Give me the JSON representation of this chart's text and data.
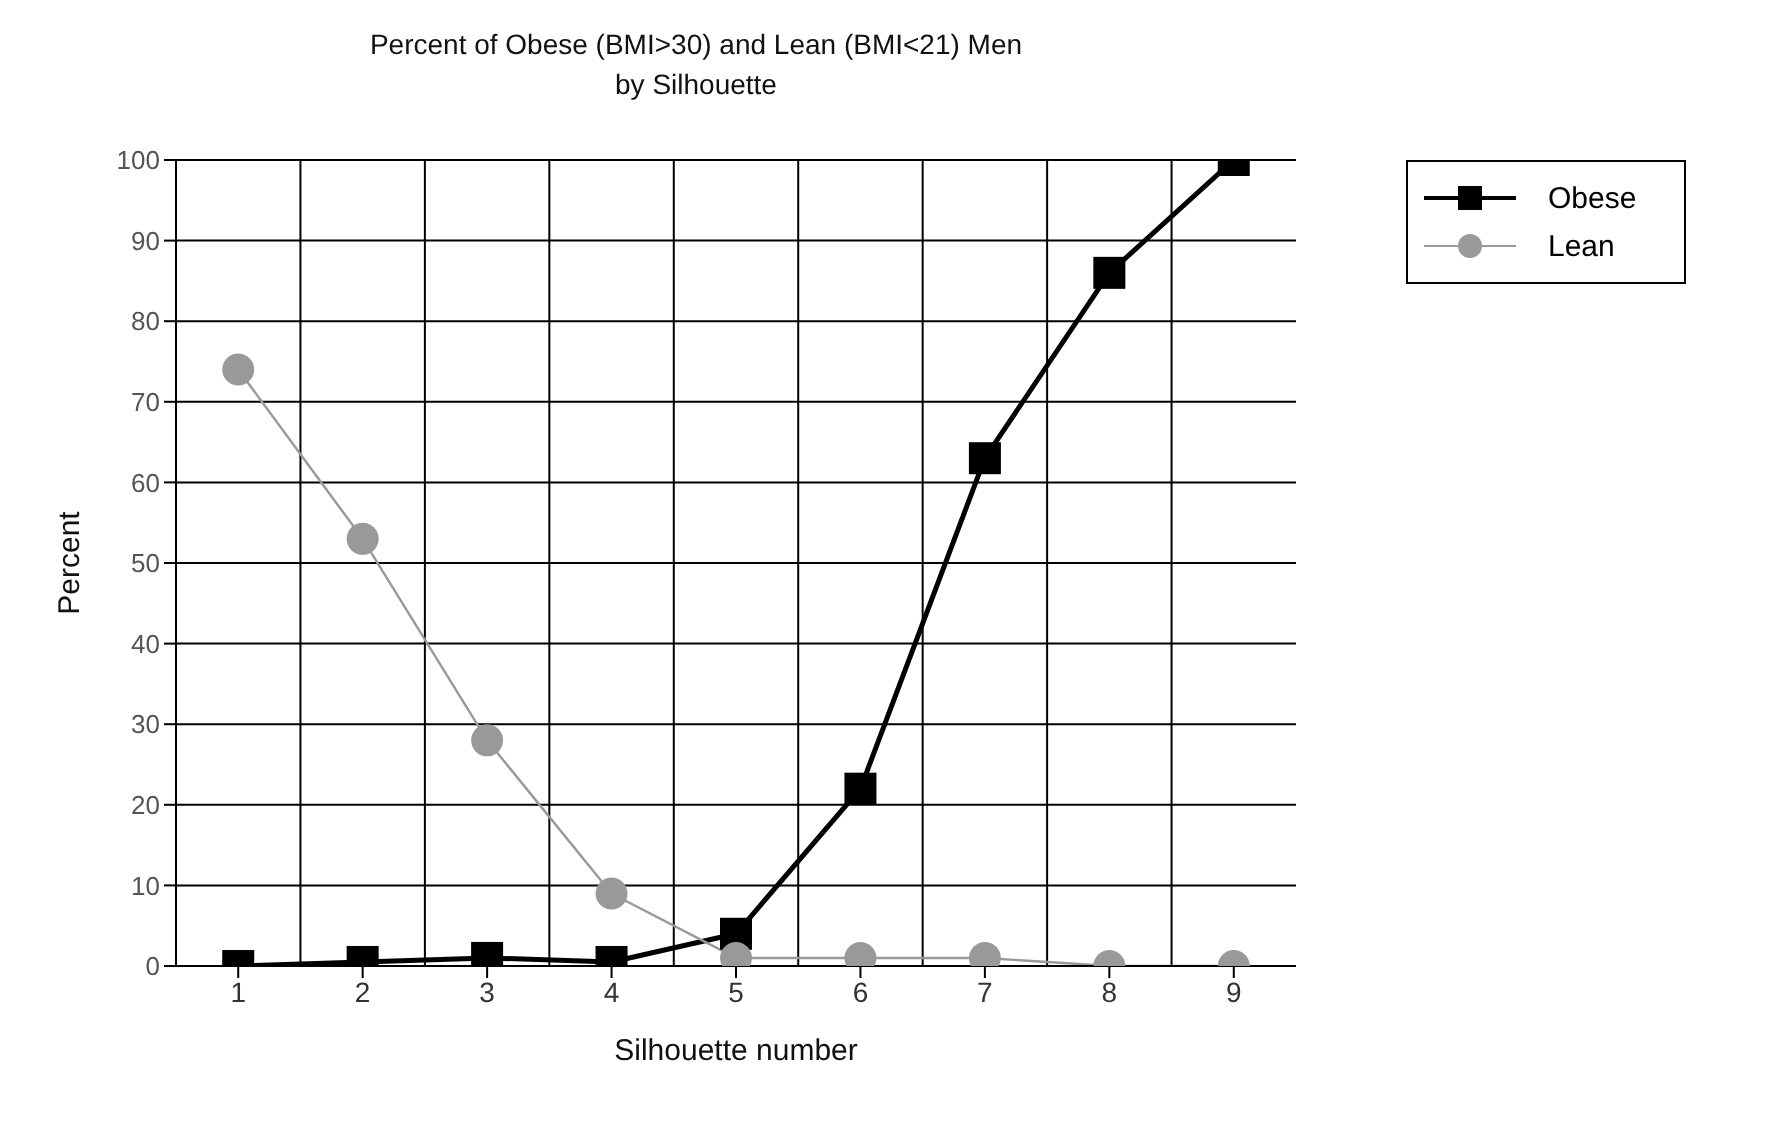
{
  "chart_data": {
    "type": "line",
    "title": "Percent of Obese (BMI>30) and Lean (BMI<21) Men",
    "subtitle": "by Silhouette",
    "xlabel": "Silhouette number",
    "ylabel": "Percent",
    "categories": [
      "1",
      "2",
      "3",
      "4",
      "5",
      "6",
      "7",
      "8",
      "9"
    ],
    "series": [
      {
        "name": "Obese",
        "color": "#000000",
        "marker": "square",
        "values": [
          0,
          0.5,
          1,
          0.5,
          4,
          22,
          63,
          86,
          100
        ]
      },
      {
        "name": "Lean",
        "color": "#999999",
        "marker": "circle",
        "values": [
          74,
          53,
          28,
          9,
          1,
          1,
          1,
          0,
          0
        ]
      }
    ],
    "ylim": [
      0,
      100
    ],
    "yticks": [
      0,
      10,
      20,
      30,
      40,
      50,
      60,
      70,
      80,
      90,
      100
    ],
    "grid": true,
    "legend": "top right"
  }
}
